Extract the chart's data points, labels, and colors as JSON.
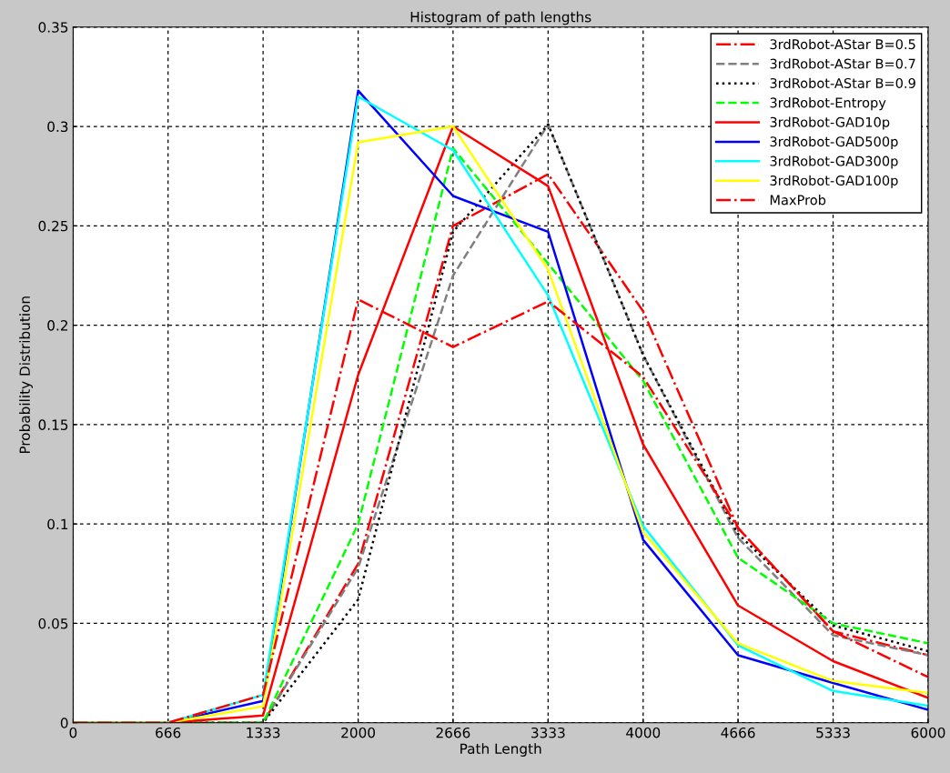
{
  "chart_data": {
    "type": "line",
    "title": "Histogram of path lengths",
    "xlabel": "Path Length",
    "ylabel": "Probability Distribution",
    "x": [
      0,
      666,
      1333,
      2000,
      2666,
      3333,
      4000,
      4666,
      5333,
      6000
    ],
    "xlim": [
      0,
      6000
    ],
    "xticks": [
      0,
      666,
      1333,
      2000,
      2666,
      3333,
      4000,
      4666,
      5333,
      6000
    ],
    "ylim": [
      0,
      0.35
    ],
    "yticks": [
      0,
      0.05,
      0.1,
      0.15,
      0.2,
      0.25,
      0.3,
      0.35
    ],
    "grid": true,
    "legend": "top right",
    "marker": "none",
    "series": [
      {
        "name": "3rdRobot-AStar B=0.5",
        "color": "#ff0000",
        "line_style": "dashdot",
        "values": [
          0,
          0,
          0,
          0.08,
          0.25,
          0.276,
          0.207,
          0.098,
          0.046,
          0.034
        ]
      },
      {
        "name": "3rdRobot-AStar B=0.7",
        "color": "#808080",
        "line_style": "dashed",
        "values": [
          0,
          0,
          0,
          0.078,
          0.225,
          0.301,
          0.185,
          0.093,
          0.044,
          0.034
        ]
      },
      {
        "name": "3rdRobot-AStar B=0.9",
        "color": "#000000",
        "line_style": "dotted",
        "values": [
          0,
          0,
          0,
          0.062,
          0.247,
          0.301,
          0.185,
          0.095,
          0.049,
          0.036
        ]
      },
      {
        "name": "3rdRobot-Entropy",
        "color": "#00ff00",
        "line_style": "dashed",
        "values": [
          0,
          0,
          0,
          0.1,
          0.289,
          0.231,
          0.172,
          0.083,
          0.05,
          0.04
        ]
      },
      {
        "name": "3rdRobot-GAD10p",
        "color": "#ff0000",
        "line_style": "solid",
        "values": [
          0,
          0,
          0.0037,
          0.175,
          0.3,
          0.27,
          0.14,
          0.059,
          0.031,
          0.0125
        ]
      },
      {
        "name": "3rdRobot-GAD500p",
        "color": "#0000ff",
        "line_style": "solid",
        "values": [
          0,
          0,
          0.011,
          0.318,
          0.265,
          0.247,
          0.092,
          0.034,
          0.02,
          0.0065
        ]
      },
      {
        "name": "3rdRobot-GAD300p",
        "color": "#00ffff",
        "line_style": "solid",
        "values": [
          0,
          0,
          0.014,
          0.315,
          0.288,
          0.215,
          0.099,
          0.039,
          0.016,
          0.0085
        ]
      },
      {
        "name": "3rdRobot-GAD100p",
        "color": "#ffff00",
        "line_style": "solid",
        "values": [
          0,
          0,
          0.0083,
          0.292,
          0.3,
          0.228,
          0.096,
          0.04,
          0.021,
          0.015
        ]
      },
      {
        "name": "MaxProb",
        "color": "#ff0000",
        "line_style": "dashdot",
        "values": [
          0,
          0,
          0.014,
          0.213,
          0.189,
          0.212,
          0.174,
          0.098,
          0.046,
          0.023
        ]
      }
    ]
  }
}
